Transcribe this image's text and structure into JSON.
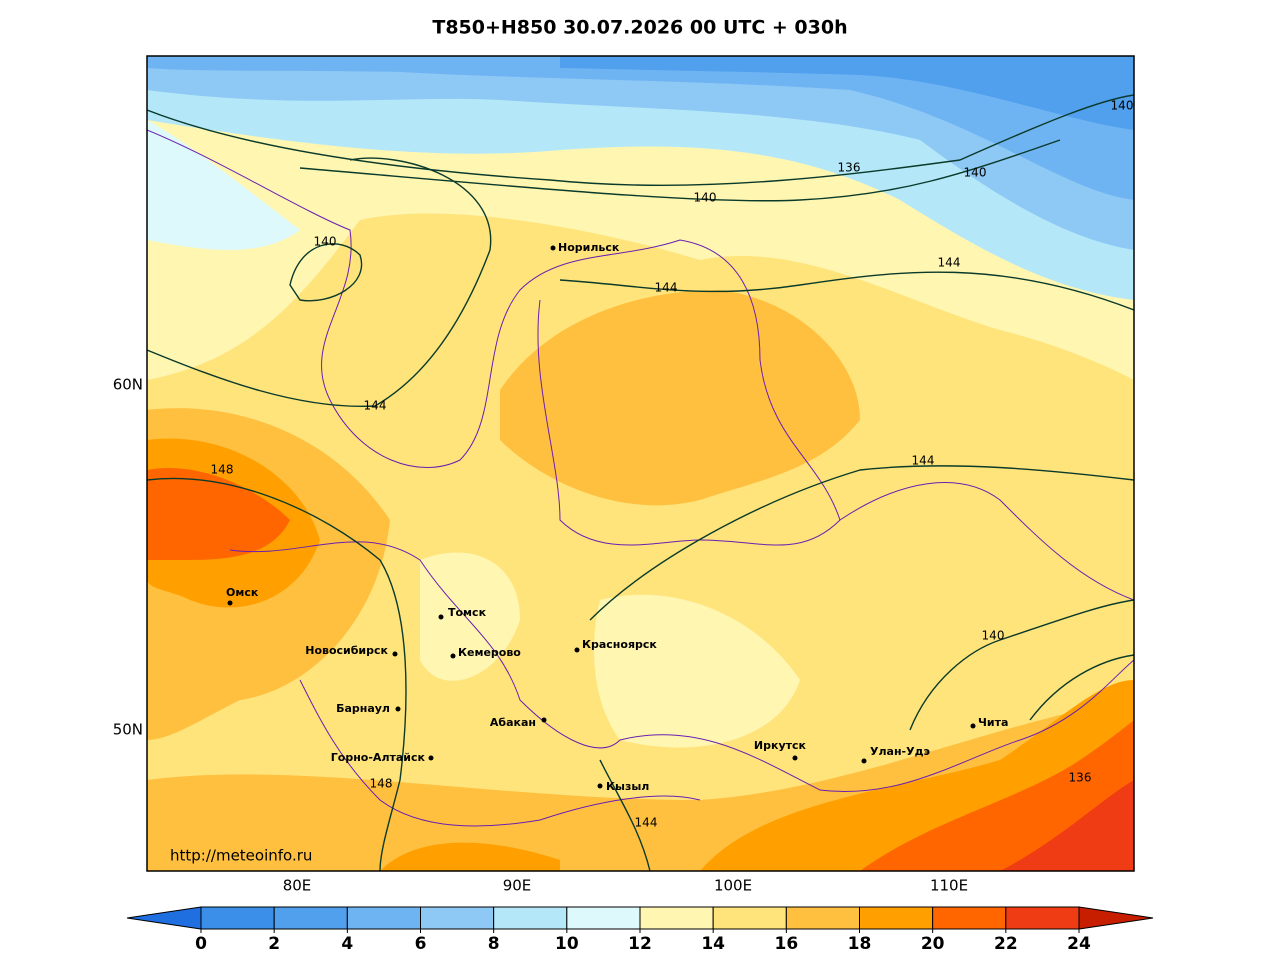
{
  "title": "T850+H850 30.07.2026 00 UTC + 030h",
  "url": "http://meteoinfo.ru",
  "lat_labels": [
    "60N",
    "50N"
  ],
  "lon_labels": [
    "80E",
    "90E",
    "100E",
    "110E"
  ],
  "cities": [
    "Норильск",
    "Томск",
    "Омск",
    "Новосибирск",
    "Кемерово",
    "Красноярск",
    "Барнаул",
    "Абакан",
    "Горно-Алтайск",
    "Кызыл",
    "Иркутск",
    "Улан-Удэ",
    "Чита"
  ],
  "contour_labels": [
    140,
    136,
    140,
    140,
    144,
    140,
    144,
    144,
    148,
    144,
    140,
    136,
    148,
    144
  ],
  "colorbar": {
    "ticks": [
      0,
      2,
      4,
      6,
      8,
      10,
      12,
      14,
      16,
      18,
      20,
      22,
      24
    ],
    "colors": [
      "#1f6fe0",
      "#3c8fe8",
      "#50a0ee",
      "#6fb4f2",
      "#8ec8f5",
      "#b4e8f8",
      "#ddf9fb",
      "#fff6b2",
      "#ffe47c",
      "#ffc040",
      "#ffa000",
      "#ff6600",
      "#f03c14",
      "#c81e00"
    ]
  }
}
